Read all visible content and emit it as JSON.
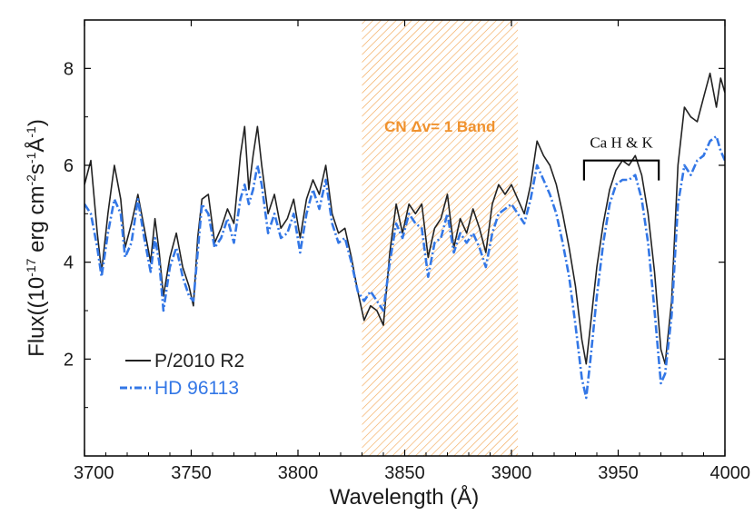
{
  "chart_data": {
    "type": "line",
    "title": "",
    "xlabel": "Wavelength (Å)",
    "ylabel_parts": {
      "a": "Flux((10",
      "b": "-17",
      "c": " erg cm",
      "d": "-2",
      "e": "s",
      "f": "-1",
      "g": "Å",
      "h": "-1",
      "i": ")"
    },
    "xlim": [
      3700,
      4000
    ],
    "ylim": [
      0,
      9
    ],
    "xticks": [
      "3700",
      "3750",
      "3800",
      "3850",
      "3900",
      "3950",
      "4000"
    ],
    "yticks": [
      "2",
      "4",
      "6",
      "8"
    ],
    "grid": false,
    "legend": {
      "position": "bottom-left",
      "entries": [
        {
          "label": "P/2010 R2",
          "color": "#222222",
          "style": "solid"
        },
        {
          "label": "HD 96113",
          "color": "#3377e6",
          "style": "dash-dot"
        }
      ]
    },
    "annotations": {
      "cn_band": {
        "label": "CN Δv= 1 Band",
        "x_range": [
          3830,
          3903
        ],
        "color": "#f0922e"
      },
      "ca_hk": {
        "label": "Ca H & K",
        "x_range": [
          3934,
          3969
        ],
        "y": 6.1
      }
    },
    "series": [
      {
        "name": "P/2010 R2",
        "color": "#222222",
        "x": [
          3700,
          3703,
          3706,
          3708,
          3711,
          3714,
          3717,
          3719,
          3722,
          3725,
          3728,
          3731,
          3733,
          3735,
          3737,
          3740,
          3743,
          3746,
          3749,
          3751,
          3753,
          3755,
          3758,
          3761,
          3764,
          3767,
          3770,
          3773,
          3775,
          3777,
          3779,
          3781,
          3783,
          3786,
          3789,
          3792,
          3795,
          3798,
          3801,
          3804,
          3807,
          3810,
          3813,
          3816,
          3819,
          3822,
          3825,
          3828,
          3831,
          3834,
          3837,
          3840,
          3843,
          3846,
          3849,
          3852,
          3855,
          3858,
          3861,
          3864,
          3867,
          3870,
          3873,
          3876,
          3879,
          3882,
          3885,
          3888,
          3891,
          3894,
          3897,
          3900,
          3903,
          3906,
          3909,
          3912,
          3915,
          3918,
          3921,
          3924,
          3927,
          3930,
          3933,
          3935,
          3937,
          3940,
          3943,
          3946,
          3949,
          3952,
          3955,
          3958,
          3961,
          3964,
          3967,
          3970,
          3972,
          3975,
          3978,
          3981,
          3984,
          3987,
          3990,
          3993,
          3996,
          3998,
          4000
        ],
        "y": [
          5.6,
          6.1,
          4.6,
          3.8,
          5.0,
          6.0,
          5.3,
          4.3,
          4.8,
          5.4,
          4.7,
          4.0,
          4.9,
          4.2,
          3.3,
          4.1,
          4.6,
          3.9,
          3.5,
          3.1,
          4.5,
          5.3,
          5.4,
          4.4,
          4.7,
          5.1,
          4.8,
          6.2,
          6.8,
          5.5,
          6.2,
          6.8,
          6.0,
          5.0,
          5.4,
          4.7,
          4.9,
          5.3,
          4.5,
          5.3,
          5.7,
          5.4,
          6.0,
          5.0,
          4.6,
          4.7,
          4.1,
          3.4,
          2.8,
          3.1,
          3.0,
          2.7,
          4.2,
          5.2,
          4.6,
          5.2,
          5.0,
          5.2,
          4.1,
          4.7,
          4.9,
          5.4,
          4.3,
          4.9,
          4.6,
          5.1,
          4.7,
          4.2,
          5.2,
          5.6,
          5.4,
          5.6,
          5.3,
          5.0,
          5.6,
          6.5,
          6.2,
          6.0,
          5.6,
          5.0,
          4.3,
          3.5,
          2.4,
          1.9,
          2.7,
          3.9,
          4.8,
          5.5,
          5.9,
          6.1,
          6.0,
          6.2,
          5.8,
          5.0,
          3.8,
          2.2,
          1.9,
          3.2,
          6.0,
          7.2,
          7.0,
          6.9,
          7.4,
          7.9,
          7.2,
          7.8,
          7.5
        ]
      },
      {
        "name": "HD 96113",
        "color": "#3377e6",
        "x": [
          3700,
          3703,
          3706,
          3708,
          3711,
          3714,
          3717,
          3719,
          3722,
          3725,
          3728,
          3731,
          3733,
          3735,
          3737,
          3740,
          3743,
          3746,
          3749,
          3751,
          3753,
          3755,
          3758,
          3761,
          3764,
          3767,
          3770,
          3773,
          3775,
          3777,
          3779,
          3781,
          3783,
          3786,
          3789,
          3792,
          3795,
          3798,
          3801,
          3804,
          3807,
          3810,
          3813,
          3816,
          3819,
          3822,
          3825,
          3828,
          3831,
          3834,
          3837,
          3840,
          3843,
          3846,
          3849,
          3852,
          3855,
          3858,
          3861,
          3864,
          3867,
          3870,
          3873,
          3876,
          3879,
          3882,
          3885,
          3888,
          3891,
          3894,
          3897,
          3900,
          3903,
          3906,
          3909,
          3912,
          3915,
          3918,
          3921,
          3924,
          3927,
          3930,
          3933,
          3935,
          3937,
          3940,
          3943,
          3946,
          3949,
          3952,
          3955,
          3958,
          3961,
          3964,
          3967,
          3970,
          3972,
          3975,
          3978,
          3981,
          3984,
          3987,
          3990,
          3993,
          3996,
          3998,
          4000
        ],
        "y": [
          5.2,
          5.0,
          4.3,
          3.7,
          4.6,
          5.3,
          5.0,
          4.1,
          4.4,
          5.3,
          4.5,
          3.8,
          4.5,
          4.0,
          3.0,
          3.9,
          4.3,
          3.7,
          3.3,
          3.2,
          4.2,
          5.2,
          5.0,
          4.3,
          4.5,
          4.9,
          4.4,
          5.3,
          5.6,
          5.2,
          5.5,
          6.0,
          5.6,
          4.6,
          5.0,
          4.5,
          4.6,
          5.0,
          4.2,
          5.0,
          5.5,
          5.1,
          5.7,
          4.8,
          4.4,
          4.5,
          4.0,
          3.4,
          3.2,
          3.4,
          3.2,
          3.0,
          4.0,
          4.8,
          4.5,
          5.0,
          4.8,
          4.7,
          3.7,
          4.4,
          4.5,
          5.0,
          4.2,
          4.6,
          4.4,
          4.6,
          4.3,
          3.9,
          4.6,
          5.0,
          5.1,
          5.2,
          5.0,
          4.8,
          5.3,
          6.0,
          5.7,
          5.4,
          5.0,
          4.4,
          3.7,
          2.7,
          1.6,
          1.2,
          2.0,
          3.3,
          4.4,
          5.2,
          5.6,
          5.7,
          5.7,
          5.8,
          5.3,
          4.4,
          3.0,
          1.5,
          1.7,
          2.9,
          5.2,
          6.0,
          5.8,
          6.1,
          6.2,
          6.5,
          6.6,
          6.3,
          6.1
        ]
      }
    ]
  }
}
